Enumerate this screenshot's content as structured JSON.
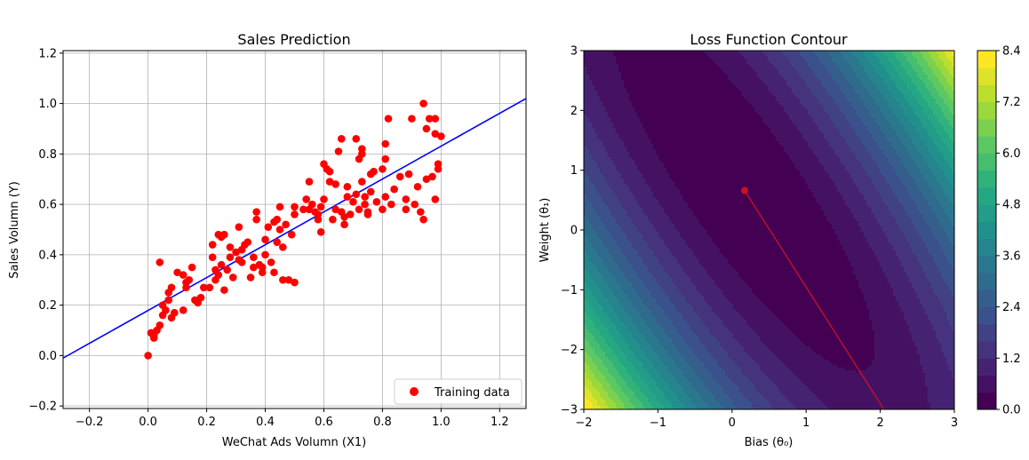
{
  "colors": {
    "points": "#ff0000",
    "fit_line": "#0000ff",
    "grid": "#b0b0b0",
    "descent_path": "#cc1122"
  },
  "chart_data": [
    {
      "type": "scatter",
      "title": "Sales Prediction",
      "xlabel": "WeChat Ads Volumn (X1)",
      "ylabel": "Sales Volumn (Y)",
      "xlim": [
        -0.29,
        1.29
      ],
      "ylim": [
        -0.21,
        1.21
      ],
      "xticks": [
        -0.2,
        0.0,
        0.2,
        0.4,
        0.6,
        0.8,
        1.0,
        1.2
      ],
      "xtick_labels": [
        "−0.2",
        "0.0",
        "0.2",
        "0.4",
        "0.6",
        "0.8",
        "1.0",
        "1.2"
      ],
      "yticks": [
        -0.2,
        0.0,
        0.2,
        0.4,
        0.6,
        0.8,
        1.0,
        1.2
      ],
      "ytick_labels": [
        "−0.2",
        "0.0",
        "0.2",
        "0.4",
        "0.6",
        "0.8",
        "1.0",
        "1.2"
      ],
      "grid": true,
      "legend_position": "lower-right",
      "series": [
        {
          "name": "Training data",
          "marker": "circle",
          "points": [
            [
              0.0,
              0.0
            ],
            [
              0.01,
              0.09
            ],
            [
              0.02,
              0.07
            ],
            [
              0.03,
              0.1
            ],
            [
              0.02,
              0.08
            ],
            [
              0.04,
              0.12
            ],
            [
              0.05,
              0.16
            ],
            [
              0.05,
              0.2
            ],
            [
              0.06,
              0.18
            ],
            [
              0.04,
              0.37
            ],
            [
              0.07,
              0.25
            ],
            [
              0.07,
              0.22
            ],
            [
              0.08,
              0.27
            ],
            [
              0.08,
              0.15
            ],
            [
              0.09,
              0.17
            ],
            [
              0.1,
              0.33
            ],
            [
              0.12,
              0.32
            ],
            [
              0.12,
              0.18
            ],
            [
              0.13,
              0.29
            ],
            [
              0.13,
              0.27
            ],
            [
              0.14,
              0.3
            ],
            [
              0.15,
              0.35
            ],
            [
              0.16,
              0.22
            ],
            [
              0.17,
              0.21
            ],
            [
              0.18,
              0.23
            ],
            [
              0.19,
              0.27
            ],
            [
              0.21,
              0.27
            ],
            [
              0.22,
              0.39
            ],
            [
              0.22,
              0.44
            ],
            [
              0.23,
              0.34
            ],
            [
              0.23,
              0.3
            ],
            [
              0.24,
              0.32
            ],
            [
              0.24,
              0.48
            ],
            [
              0.25,
              0.36
            ],
            [
              0.25,
              0.47
            ],
            [
              0.26,
              0.26
            ],
            [
              0.26,
              0.48
            ],
            [
              0.27,
              0.34
            ],
            [
              0.28,
              0.39
            ],
            [
              0.28,
              0.43
            ],
            [
              0.29,
              0.31
            ],
            [
              0.3,
              0.41
            ],
            [
              0.31,
              0.38
            ],
            [
              0.31,
              0.51
            ],
            [
              0.32,
              0.37
            ],
            [
              0.32,
              0.42
            ],
            [
              0.33,
              0.44
            ],
            [
              0.34,
              0.45
            ],
            [
              0.35,
              0.31
            ],
            [
              0.36,
              0.35
            ],
            [
              0.36,
              0.39
            ],
            [
              0.37,
              0.57
            ],
            [
              0.37,
              0.54
            ],
            [
              0.38,
              0.36
            ],
            [
              0.39,
              0.33
            ],
            [
              0.39,
              0.35
            ],
            [
              0.4,
              0.4
            ],
            [
              0.4,
              0.46
            ],
            [
              0.41,
              0.51
            ],
            [
              0.42,
              0.37
            ],
            [
              0.43,
              0.53
            ],
            [
              0.43,
              0.33
            ],
            [
              0.44,
              0.54
            ],
            [
              0.44,
              0.45
            ],
            [
              0.45,
              0.59
            ],
            [
              0.45,
              0.5
            ],
            [
              0.46,
              0.43
            ],
            [
              0.46,
              0.3
            ],
            [
              0.47,
              0.52
            ],
            [
              0.48,
              0.3
            ],
            [
              0.49,
              0.48
            ],
            [
              0.5,
              0.59
            ],
            [
              0.5,
              0.56
            ],
            [
              0.5,
              0.29
            ],
            [
              0.53,
              0.58
            ],
            [
              0.54,
              0.62
            ],
            [
              0.55,
              0.58
            ],
            [
              0.55,
              0.69
            ],
            [
              0.56,
              0.6
            ],
            [
              0.57,
              0.57
            ],
            [
              0.58,
              0.54
            ],
            [
              0.58,
              0.56
            ],
            [
              0.59,
              0.49
            ],
            [
              0.59,
              0.59
            ],
            [
              0.6,
              0.62
            ],
            [
              0.6,
              0.76
            ],
            [
              0.61,
              0.74
            ],
            [
              0.62,
              0.73
            ],
            [
              0.62,
              0.69
            ],
            [
              0.63,
              0.54
            ],
            [
              0.64,
              0.58
            ],
            [
              0.64,
              0.68
            ],
            [
              0.65,
              0.81
            ],
            [
              0.66,
              0.57
            ],
            [
              0.66,
              0.86
            ],
            [
              0.67,
              0.55
            ],
            [
              0.67,
              0.52
            ],
            [
              0.68,
              0.63
            ],
            [
              0.68,
              0.67
            ],
            [
              0.69,
              0.56
            ],
            [
              0.7,
              0.61
            ],
            [
              0.71,
              0.64
            ],
            [
              0.71,
              0.86
            ],
            [
              0.72,
              0.78
            ],
            [
              0.72,
              0.58
            ],
            [
              0.73,
              0.82
            ],
            [
              0.73,
              0.8
            ],
            [
              0.73,
              0.69
            ],
            [
              0.74,
              0.6
            ],
            [
              0.74,
              0.63
            ],
            [
              0.75,
              0.57
            ],
            [
              0.75,
              0.56
            ],
            [
              0.76,
              0.72
            ],
            [
              0.76,
              0.65
            ],
            [
              0.77,
              0.73
            ],
            [
              0.78,
              0.61
            ],
            [
              0.8,
              0.58
            ],
            [
              0.8,
              0.74
            ],
            [
              0.81,
              0.84
            ],
            [
              0.81,
              0.78
            ],
            [
              0.81,
              0.63
            ],
            [
              0.82,
              0.94
            ],
            [
              0.83,
              0.6
            ],
            [
              0.84,
              0.66
            ],
            [
              0.86,
              0.71
            ],
            [
              0.88,
              0.58
            ],
            [
              0.88,
              0.62
            ],
            [
              0.89,
              0.72
            ],
            [
              0.9,
              0.94
            ],
            [
              0.91,
              0.6
            ],
            [
              0.92,
              0.67
            ],
            [
              0.93,
              0.57
            ],
            [
              0.94,
              1.0
            ],
            [
              0.94,
              0.54
            ],
            [
              0.95,
              0.7
            ],
            [
              0.95,
              0.9
            ],
            [
              0.96,
              0.94
            ],
            [
              0.97,
              0.71
            ],
            [
              0.98,
              0.94
            ],
            [
              0.98,
              0.62
            ],
            [
              0.98,
              0.88
            ],
            [
              0.99,
              0.76
            ],
            [
              0.99,
              0.74
            ],
            [
              1.0,
              0.87
            ]
          ]
        },
        {
          "name": "",
          "type": "line",
          "points": [
            [
              -0.29,
              -0.01
            ],
            [
              1.29,
              1.02
            ]
          ]
        }
      ]
    },
    {
      "type": "contour",
      "title": "Loss Function Contour",
      "xlabel": "Bias (θ₀)",
      "ylabel": "Weight (θ₁)",
      "xlim": [
        -2,
        3
      ],
      "ylim": [
        -3,
        3
      ],
      "xticks": [
        -2,
        -1,
        0,
        1,
        2,
        3
      ],
      "xtick_labels": [
        "−2",
        "−1",
        "0",
        "1",
        "2",
        "3"
      ],
      "yticks": [
        -3,
        -2,
        -1,
        0,
        1,
        2,
        3
      ],
      "ytick_labels": [
        "−3",
        "−2",
        "−1",
        "0",
        "1",
        "2",
        "3"
      ],
      "colormap": "viridis",
      "levels": [
        0.0,
        0.4,
        0.8,
        1.2,
        1.6,
        2.0,
        2.4,
        2.8,
        3.2,
        3.6,
        4.0,
        4.4,
        4.8,
        5.2,
        5.6,
        6.0,
        6.4,
        6.8,
        7.2,
        7.6,
        8.0,
        8.4
      ],
      "loss_model": {
        "mean_x": 0.5,
        "mean_x2": 0.333,
        "mean_y": 0.5,
        "mean_xy": 0.31,
        "mean_y2": 0.3
      },
      "colorbar": {
        "ticks": [
          0.0,
          1.2,
          2.4,
          3.6,
          4.8,
          6.0,
          7.2,
          8.4
        ],
        "tick_labels": [
          "0.0",
          "1.2",
          "2.4",
          "3.6",
          "4.8",
          "6.0",
          "7.2",
          "8.4"
        ]
      },
      "descent_path": {
        "points": [
          [
            2.05,
            -3.0
          ],
          [
            0.17,
            0.66
          ]
        ],
        "end_marker": [
          0.17,
          0.66
        ]
      }
    }
  ]
}
